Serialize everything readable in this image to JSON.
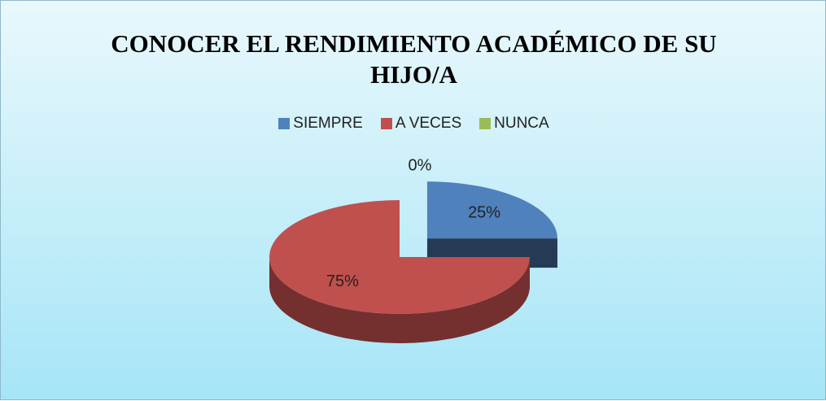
{
  "chart_data": {
    "type": "pie",
    "title": "CONOCER EL RENDIMIENTO ACADÉMICO DE SU HIJO/A",
    "categories": [
      "SIEMPRE",
      "A VECES",
      "NUNCA"
    ],
    "values": [
      25,
      75,
      0
    ],
    "value_labels": [
      "25%",
      "75%",
      "0%"
    ],
    "colors": [
      "#4f81bd",
      "#c0504d",
      "#9bbb59"
    ],
    "legend": "top"
  }
}
